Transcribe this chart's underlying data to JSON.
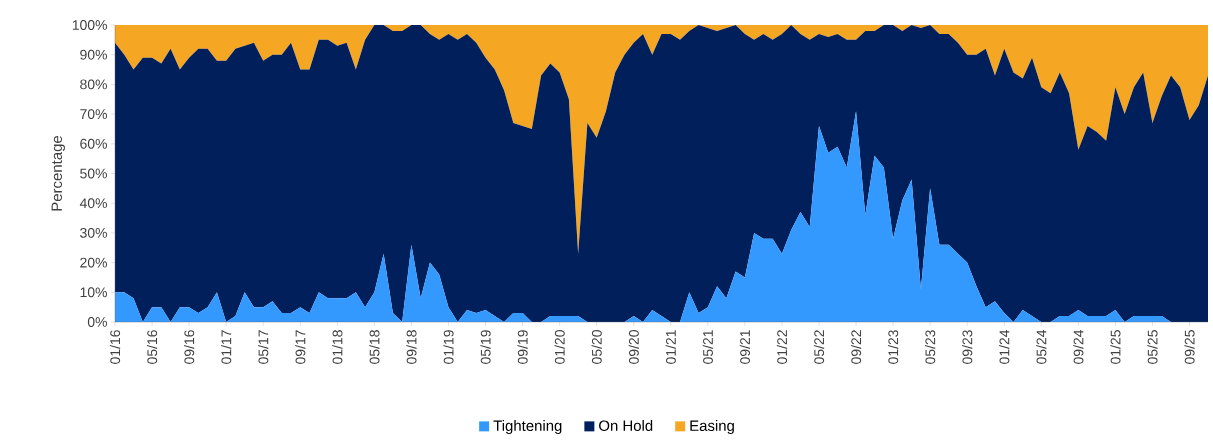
{
  "chart_data": {
    "type": "area",
    "stacked": true,
    "ylabel": "Percentage",
    "legend": "bottom",
    "grid": false,
    "x": [
      "2016-01",
      "2016-02",
      "2016-03",
      "2016-04",
      "2016-05",
      "2016-06",
      "2016-07",
      "2016-08",
      "2016-09",
      "2016-10",
      "2016-11",
      "2016-12",
      "2017-01",
      "2017-02",
      "2017-03",
      "2017-04",
      "2017-05",
      "2017-06",
      "2017-07",
      "2017-08",
      "2017-09",
      "2017-10",
      "2017-11",
      "2017-12",
      "2018-01",
      "2018-02",
      "2018-03",
      "2018-04",
      "2018-05",
      "2018-06",
      "2018-07",
      "2018-08",
      "2018-09",
      "2018-10",
      "2018-11",
      "2018-12",
      "2019-01",
      "2019-02",
      "2019-03",
      "2019-04",
      "2019-05",
      "2019-06",
      "2019-07",
      "2019-08",
      "2019-09",
      "2019-10",
      "2019-11",
      "2019-12",
      "2020-01",
      "2020-02",
      "2020-03",
      "2020-04",
      "2020-05",
      "2020-06",
      "2020-07",
      "2020-08",
      "2020-09",
      "2020-10",
      "2020-11",
      "2020-12",
      "2021-01",
      "2021-02",
      "2021-03",
      "2021-04",
      "2021-05",
      "2021-06",
      "2021-07",
      "2021-08",
      "2021-09",
      "2021-10",
      "2021-11",
      "2021-12",
      "2022-01",
      "2022-02",
      "2022-03",
      "2022-04",
      "2022-05",
      "2022-06",
      "2022-07",
      "2022-08",
      "2022-09",
      "2022-10",
      "2022-11",
      "2022-12",
      "2023-01",
      "2023-02",
      "2023-03",
      "2023-04",
      "2023-05",
      "2023-06",
      "2023-07",
      "2023-08",
      "2023-09",
      "2023-10",
      "2023-11",
      "2023-12",
      "2024-01",
      "2024-02",
      "2024-03",
      "2024-04",
      "2024-05",
      "2024-06",
      "2024-07",
      "2024-08",
      "2024-09",
      "2024-10",
      "2024-11",
      "2024-12",
      "2025-01",
      "2025-02",
      "2025-03",
      "2025-04",
      "2025-05",
      "2025-06",
      "2025-07",
      "2025-08",
      "2025-09",
      "2025-10",
      "2025-11"
    ],
    "xlim": [
      "2016-01",
      "2025-11"
    ],
    "xticks": [
      {
        "value": "2016-01",
        "label": "01/16"
      },
      {
        "value": "2016-05",
        "label": "05/16"
      },
      {
        "value": "2016-09",
        "label": "09/16"
      },
      {
        "value": "2017-01",
        "label": "01/17"
      },
      {
        "value": "2017-05",
        "label": "05/17"
      },
      {
        "value": "2017-09",
        "label": "09/17"
      },
      {
        "value": "2018-01",
        "label": "01/18"
      },
      {
        "value": "2018-05",
        "label": "05/18"
      },
      {
        "value": "2018-09",
        "label": "09/18"
      },
      {
        "value": "2019-01",
        "label": "01/19"
      },
      {
        "value": "2019-05",
        "label": "05/19"
      },
      {
        "value": "2019-09",
        "label": "09/19"
      },
      {
        "value": "2020-01",
        "label": "01/20"
      },
      {
        "value": "2020-05",
        "label": "05/20"
      },
      {
        "value": "2020-09",
        "label": "09/20"
      },
      {
        "value": "2021-01",
        "label": "01/21"
      },
      {
        "value": "2021-05",
        "label": "05/21"
      },
      {
        "value": "2021-09",
        "label": "09/21"
      },
      {
        "value": "2022-01",
        "label": "01/22"
      },
      {
        "value": "2022-05",
        "label": "05/22"
      },
      {
        "value": "2022-09",
        "label": "09/22"
      },
      {
        "value": "2023-01",
        "label": "01/23"
      },
      {
        "value": "2023-05",
        "label": "05/23"
      },
      {
        "value": "2023-09",
        "label": "09/23"
      },
      {
        "value": "2024-01",
        "label": "01/24"
      },
      {
        "value": "2024-05",
        "label": "05/24"
      },
      {
        "value": "2024-09",
        "label": "09/24"
      },
      {
        "value": "2025-01",
        "label": "01/25"
      },
      {
        "value": "2025-05",
        "label": "05/25"
      },
      {
        "value": "2025-09",
        "label": "09/25"
      }
    ],
    "ylim": [
      0,
      100
    ],
    "yticks": [
      {
        "value": 0,
        "label": "0%"
      },
      {
        "value": 10,
        "label": "10%"
      },
      {
        "value": 20,
        "label": "20%"
      },
      {
        "value": 30,
        "label": "30%"
      },
      {
        "value": 40,
        "label": "40%"
      },
      {
        "value": 50,
        "label": "50%"
      },
      {
        "value": 60,
        "label": "60%"
      },
      {
        "value": 70,
        "label": "70%"
      },
      {
        "value": 80,
        "label": "80%"
      },
      {
        "value": 90,
        "label": "90%"
      },
      {
        "value": 100,
        "label": "100%"
      }
    ],
    "series": [
      {
        "name": "Tightening",
        "color": "#3399ff",
        "values": [
          10,
          10,
          8,
          0,
          5,
          5,
          0,
          5,
          5,
          3,
          5,
          10,
          0,
          2,
          10,
          5,
          5,
          7,
          3,
          3,
          5,
          3,
          10,
          8,
          8,
          8,
          10,
          5,
          10,
          23,
          3,
          0,
          26,
          8,
          20,
          16,
          5,
          0,
          4,
          3,
          4,
          2,
          0,
          3,
          3,
          0,
          0,
          2,
          2,
          2,
          2,
          0,
          0,
          0,
          0,
          0,
          2,
          0,
          4,
          2,
          0,
          0,
          10,
          3,
          5,
          12,
          8,
          17,
          15,
          30,
          28,
          28,
          23,
          31,
          37,
          32,
          66,
          57,
          59,
          52,
          71,
          36,
          56,
          52,
          28,
          41,
          48,
          11,
          45,
          26,
          26,
          23,
          20,
          12,
          5,
          7,
          3,
          0,
          4,
          2,
          0,
          0,
          2,
          2,
          4,
          2,
          2,
          2,
          4,
          0,
          2,
          2,
          2,
          2,
          0,
          0,
          0,
          0,
          0
        ]
      },
      {
        "name": "On Hold",
        "color": "#001f5b",
        "values": [
          84,
          80,
          77,
          89,
          84,
          82,
          92,
          80,
          84,
          89,
          87,
          78,
          88,
          90,
          83,
          89,
          83,
          83,
          87,
          91,
          80,
          82,
          85,
          87,
          85,
          86,
          75,
          90,
          90,
          77,
          95,
          98,
          74,
          92,
          77,
          79,
          92,
          95,
          93,
          91,
          85,
          83,
          78,
          64,
          63,
          65,
          83,
          85,
          82,
          73,
          21,
          67,
          62,
          71,
          84,
          90,
          92,
          97,
          86,
          95,
          97,
          95,
          88,
          97,
          94,
          86,
          91,
          83,
          82,
          65,
          69,
          67,
          74,
          69,
          60,
          63,
          31,
          39,
          38,
          43,
          24,
          62,
          42,
          48,
          72,
          57,
          52,
          88,
          55,
          71,
          71,
          71,
          70,
          78,
          87,
          76,
          89,
          84,
          78,
          87,
          79,
          77,
          82,
          75,
          54,
          64,
          62,
          59,
          75,
          70,
          77,
          82,
          65,
          74,
          83,
          79,
          68,
          73,
          83
        ]
      },
      {
        "name": "Easing",
        "color": "#f5a623",
        "values": [
          6,
          10,
          15,
          11,
          11,
          13,
          8,
          15,
          11,
          8,
          8,
          12,
          12,
          8,
          7,
          6,
          12,
          10,
          10,
          6,
          15,
          15,
          5,
          5,
          7,
          6,
          15,
          5,
          0,
          0,
          2,
          2,
          0,
          0,
          3,
          5,
          3,
          5,
          3,
          6,
          11,
          15,
          22,
          33,
          34,
          35,
          17,
          13,
          16,
          25,
          77,
          33,
          38,
          29,
          16,
          10,
          6,
          3,
          10,
          3,
          3,
          5,
          2,
          0,
          1,
          2,
          1,
          0,
          3,
          5,
          3,
          5,
          3,
          0,
          3,
          5,
          3,
          4,
          3,
          5,
          5,
          2,
          2,
          0,
          0,
          2,
          0,
          1,
          0,
          3,
          3,
          6,
          10,
          10,
          8,
          17,
          8,
          16,
          18,
          11,
          21,
          23,
          16,
          23,
          42,
          34,
          36,
          39,
          21,
          30,
          21,
          16,
          33,
          24,
          17,
          21,
          32,
          27,
          17
        ]
      }
    ]
  }
}
